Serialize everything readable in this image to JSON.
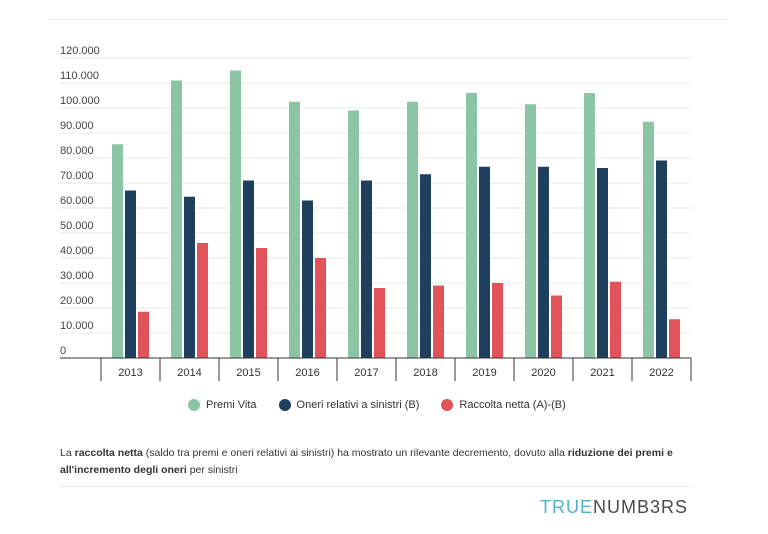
{
  "chart_data": {
    "type": "bar",
    "categories": [
      "2013",
      "2014",
      "2015",
      "2016",
      "2017",
      "2018",
      "2019",
      "2020",
      "2021",
      "2022"
    ],
    "series": [
      {
        "name": "Premi Vita",
        "color": "#8cc5a5",
        "values": [
          85500,
          111000,
          115000,
          102500,
          99000,
          102500,
          106000,
          101500,
          106000,
          94500
        ]
      },
      {
        "name": "Oneri relativi a sinistri (B)",
        "color": "#1e3f5e",
        "values": [
          67000,
          64500,
          71000,
          63000,
          71000,
          73500,
          76500,
          76500,
          76000,
          79000
        ]
      },
      {
        "name": "Raccolta netta (A)-(B)",
        "color": "#e05358",
        "values": [
          18500,
          46000,
          44000,
          40000,
          28000,
          29000,
          30000,
          25000,
          30500,
          15500
        ]
      }
    ],
    "yticks": [
      "0",
      "10.000",
      "20.000",
      "30.000",
      "40.000",
      "50.000",
      "60.000",
      "70.000",
      "80.000",
      "90.000",
      "100.000",
      "110.000",
      "120.000"
    ],
    "ylim": [
      0,
      120000
    ],
    "grid": true,
    "legend": "bottom",
    "title": "",
    "xlabel": "",
    "ylabel": ""
  },
  "note": {
    "p1": "La ",
    "b1": "raccolta netta",
    "p2": " (saldo tra premi e oneri relativi ai sinistri) ha mostrato un rilevante decremento, dovuto alla ",
    "b2": "riduzione dei premi e all'incremento degli oneri",
    "p3": " per sinistri"
  },
  "brand": {
    "part1": "TRUE",
    "part2": "NUMB3RS"
  }
}
